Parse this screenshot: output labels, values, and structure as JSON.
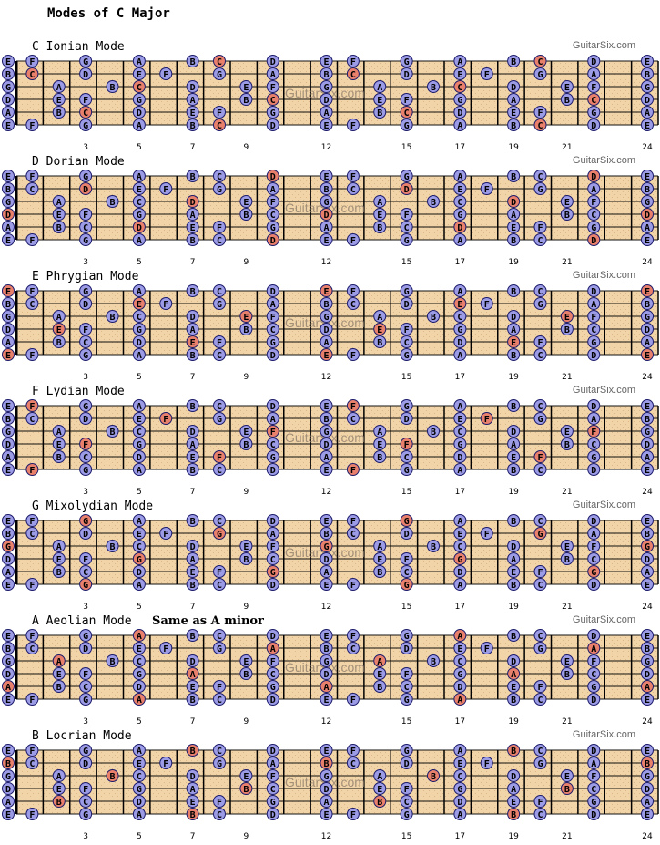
{
  "title": "Modes of C Major",
  "watermark": "GuitarSix.com",
  "chart_data": {
    "type": "diagram",
    "tuning_low_to_high": [
      "E",
      "A",
      "D",
      "G",
      "B",
      "E"
    ],
    "fret_markers": [
      "3",
      "5",
      "7",
      "9",
      "12",
      "15",
      "17",
      "19",
      "21",
      "24"
    ],
    "frets_shown": 24,
    "scale_notes": [
      "C",
      "D",
      "E",
      "F",
      "G",
      "A",
      "B"
    ]
  },
  "modes": [
    {
      "title": "C Ionian Mode",
      "note": "",
      "root": "C"
    },
    {
      "title": "D Dorian Mode",
      "note": "",
      "root": "D"
    },
    {
      "title": "E Phrygian Mode",
      "note": "",
      "root": "E"
    },
    {
      "title": "F Lydian Mode",
      "note": "",
      "root": "F"
    },
    {
      "title": "G Mixolydian Mode",
      "note": "",
      "root": "G"
    },
    {
      "title": "A Aeolian Mode",
      "note": "Same as A minor",
      "root": "A"
    },
    {
      "title": "B Locrian Mode",
      "note": "",
      "root": "B"
    }
  ],
  "colors": {
    "board": "#f1d4a8",
    "board_dark": "#dcb888",
    "note_fill": "#9b9be6",
    "root_fill": "#e8806c",
    "note_stroke": "#1a1a6a",
    "fret_line": "#000000"
  }
}
